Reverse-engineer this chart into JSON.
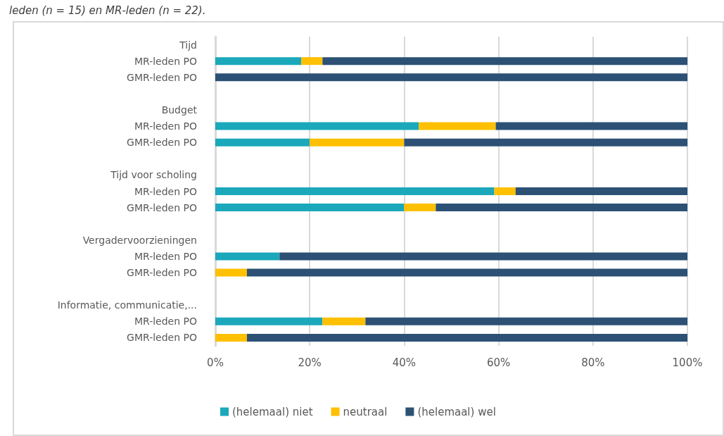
{
  "chart_data": {
    "type": "bar",
    "orientation": "horizontal",
    "stacked": true,
    "title": "leden (n = 15) en MR-leden (n = 22).",
    "categories": [
      "Tijd",
      "MR-leden PO",
      "GMR-leden PO",
      null,
      "Budget",
      "MR-leden PO",
      "GMR-leden PO",
      null,
      "Tijd voor scholing",
      "MR-leden PO",
      "GMR-leden PO",
      null,
      "Vergadervoorzieningen",
      "MR-leden PO",
      "GMR-leden PO",
      null,
      "Informatie, communicatie,...",
      "MR-leden PO",
      "GMR-leden PO"
    ],
    "series": [
      {
        "name": "(helemaal) niet",
        "color": "#1ba8bb",
        "values": [
          null,
          18.2,
          0,
          null,
          null,
          43.1,
          20,
          null,
          null,
          59.1,
          40,
          null,
          null,
          13.6,
          0,
          null,
          null,
          22.7,
          0
        ]
      },
      {
        "name": "neutraal",
        "color": "#fec000",
        "values": [
          null,
          4.5,
          0,
          null,
          null,
          16.3,
          20,
          null,
          null,
          4.5,
          6.7,
          null,
          null,
          0,
          6.7,
          null,
          null,
          9.1,
          6.7
        ]
      },
      {
        "name": "(helemaal) wel",
        "color": "#2c5175",
        "values": [
          null,
          77.3,
          100,
          null,
          null,
          40.6,
          60,
          null,
          null,
          36.4,
          53.3,
          null,
          null,
          86.4,
          93.3,
          null,
          null,
          68.2,
          93.3
        ]
      }
    ],
    "xlim": [
      0,
      100
    ],
    "xticks": [
      {
        "value": 0,
        "label": "0%"
      },
      {
        "value": 20,
        "label": "20%"
      },
      {
        "value": 40,
        "label": "40%"
      },
      {
        "value": 60,
        "label": "60%"
      },
      {
        "value": 80,
        "label": "80%"
      },
      {
        "value": 100,
        "label": "100%"
      }
    ],
    "grid": "x",
    "legend": "bottom"
  }
}
